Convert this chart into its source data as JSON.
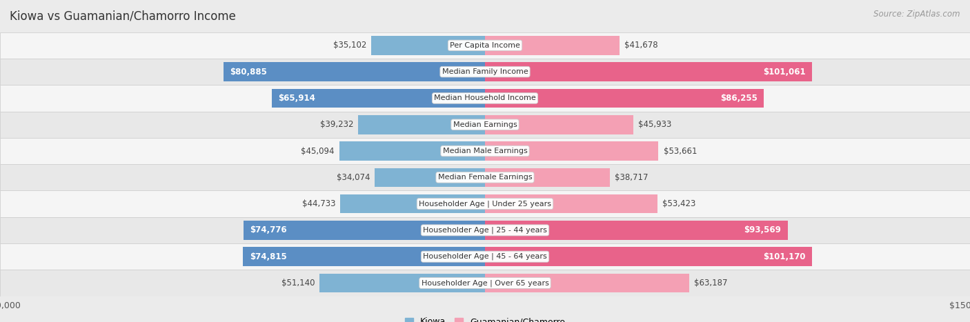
{
  "title": "Kiowa vs Guamanian/Chamorro Income",
  "source": "Source: ZipAtlas.com",
  "categories": [
    "Per Capita Income",
    "Median Family Income",
    "Median Household Income",
    "Median Earnings",
    "Median Male Earnings",
    "Median Female Earnings",
    "Householder Age | Under 25 years",
    "Householder Age | 25 - 44 years",
    "Householder Age | 45 - 64 years",
    "Householder Age | Over 65 years"
  ],
  "kiowa_values": [
    35102,
    80885,
    65914,
    39232,
    45094,
    34074,
    44733,
    74776,
    74815,
    51140
  ],
  "guam_values": [
    41678,
    101061,
    86255,
    45933,
    53661,
    38717,
    53423,
    93569,
    101170,
    63187
  ],
  "kiowa_labels": [
    "$35,102",
    "$80,885",
    "$65,914",
    "$39,232",
    "$45,094",
    "$34,074",
    "$44,733",
    "$74,776",
    "$74,815",
    "$51,140"
  ],
  "guam_labels": [
    "$41,678",
    "$101,061",
    "$86,255",
    "$45,933",
    "$53,661",
    "$38,717",
    "$53,423",
    "$93,569",
    "$101,170",
    "$63,187"
  ],
  "kiowa_color": "#7fb3d3",
  "guam_color": "#f4a0b4",
  "guam_color_highlight": "#e8638a",
  "kiowa_color_highlight": "#5b8ec4",
  "axis_max": 150000,
  "bg_color": "#ebebeb",
  "row_colors": [
    "#f5f5f5",
    "#e8e8e8"
  ],
  "row_border_color": "#d0d0d0",
  "title_fontsize": 12,
  "source_fontsize": 8.5,
  "bar_label_fontsize": 8.5,
  "cat_label_fontsize": 8,
  "legend_fontsize": 9,
  "axis_label_fontsize": 9,
  "kiowa_inside_threshold": 60000,
  "guam_inside_threshold": 70000
}
